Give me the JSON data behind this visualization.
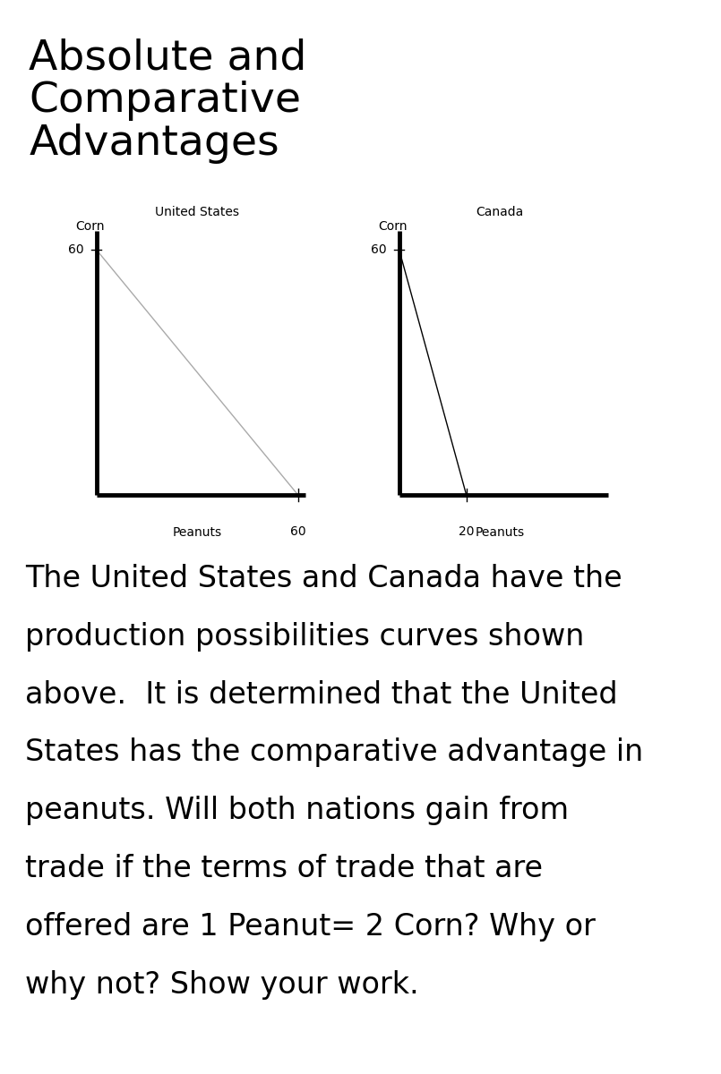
{
  "title_line1": "Absolute and",
  "title_line2": "Comparative",
  "title_line3": "Advantages",
  "title_fontsize": 34,
  "title_fontweight": "normal",
  "background_color": "#ffffff",
  "us_corn_max": 60,
  "us_peanuts_max": 60,
  "us_xaxis_max": 60,
  "canada_corn_max": 60,
  "canada_peanuts_max": 20,
  "canada_xaxis_max": 60,
  "us_label": "United States",
  "canada_label": "Canada",
  "corn_label": "Corn",
  "peanuts_label": "Peanuts",
  "body_lines": [
    "The United States and Canada have the",
    "production possibilities curves shown",
    "above.  It is determined that the United",
    "States has the comparative advantage in",
    "peanuts. Will both nations gain from",
    "trade if the terms of trade that are",
    "offered are 1 Peanut= 2 Corn? Why or",
    "why not? Show your work."
  ],
  "body_fontsize": 24,
  "axis_label_fontsize": 10,
  "country_label_fontsize": 10,
  "tick_label_fontsize": 10,
  "ppc_color_us": "#aaaaaa",
  "ppc_color_canada": "#000000",
  "axis_linewidth": 3.5,
  "ppc_linewidth": 1.0
}
